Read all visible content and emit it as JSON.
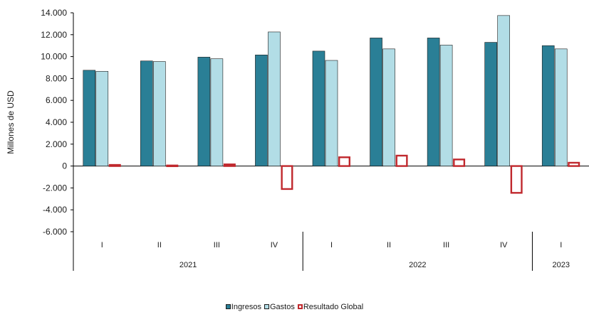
{
  "chart_data": {
    "type": "bar",
    "ylabel": "Millones de USD",
    "ylim": [
      -6000,
      14000
    ],
    "yticks": [
      14000,
      12000,
      10000,
      8000,
      6000,
      4000,
      2000,
      0,
      -2000,
      -4000,
      -6000
    ],
    "ytick_labels": [
      "14.000",
      "12.000",
      "10.000",
      "8.000",
      "6.000",
      "4.000",
      "2.000",
      "0",
      "-2.000",
      "-4.000",
      "-6.000"
    ],
    "categories": [
      "I",
      "II",
      "III",
      "IV",
      "I",
      "II",
      "III",
      "IV",
      "I"
    ],
    "years": [
      {
        "label": "2021",
        "span": 4
      },
      {
        "label": "2022",
        "span": 4
      },
      {
        "label": "2023",
        "span": 1
      }
    ],
    "series": [
      {
        "name": "Ingresos",
        "color": "#2a7f96",
        "style": "fill",
        "values": [
          8750,
          9600,
          9950,
          10150,
          10500,
          11700,
          11700,
          11300,
          11000
        ]
      },
      {
        "name": "Gastos",
        "color": "#b2dde6",
        "style": "fill",
        "values": [
          8650,
          9550,
          9800,
          12250,
          9650,
          10700,
          11050,
          13750,
          10700
        ]
      },
      {
        "name": "Resultado Global",
        "color": "#c0282d",
        "style": "outline",
        "values": [
          100,
          50,
          150,
          -2100,
          800,
          950,
          600,
          -2450,
          300
        ]
      }
    ],
    "legend_position": "bottom",
    "grid": false
  }
}
